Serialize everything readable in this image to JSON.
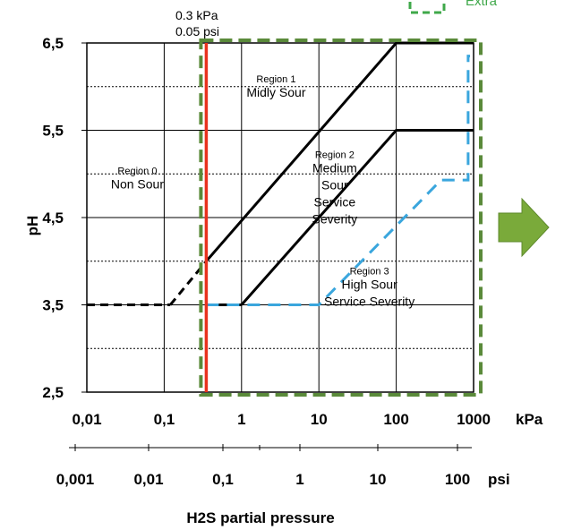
{
  "chart_data": {
    "type": "line",
    "xscale": "log",
    "xlim": [
      0.01,
      1000
    ],
    "ylim": [
      2.5,
      6.5
    ],
    "x_ticks": [
      "0,01",
      "0,1",
      "1",
      "10",
      "100",
      "1000"
    ],
    "x_unit": "kPa",
    "x2_ticks": [
      "0,001",
      "0,01",
      "0,1",
      "1",
      "10",
      "100"
    ],
    "x2_unit": "psi",
    "y_ticks": [
      "2,5",
      "3,5",
      "4,5",
      "5,5",
      "6,5"
    ],
    "ylabel": "pH",
    "xlabel": "H2S partial pressure",
    "grid": true,
    "threshold": {
      "line1": "0.3 kPa",
      "line2": "0.05 psi",
      "x": 0.35,
      "color": "#e8321e"
    },
    "region_labels": [
      {
        "num": "Region 1",
        "lines": [
          "Midly Sour"
        ],
        "x": 2.8,
        "y": 6.05
      },
      {
        "num": "Region 0",
        "lines": [
          "Non Sour"
        ],
        "x": 0.045,
        "y": 5.0
      },
      {
        "num": "Region 2",
        "lines": [
          "Medium",
          "Sour",
          "Service",
          "Severity"
        ],
        "x": 16,
        "y": 5.18
      },
      {
        "num": "Region 3",
        "lines": [
          "High Sour",
          "Service Severity"
        ],
        "x": 45,
        "y": 3.85
      }
    ],
    "series": [
      {
        "style": "solid",
        "color": "#000000",
        "x": [
          0.35,
          100,
          1000
        ],
        "y": [
          4.0,
          6.5,
          6.5
        ]
      },
      {
        "style": "solid",
        "color": "#000000",
        "x": [
          1,
          100,
          1000
        ],
        "y": [
          3.5,
          5.5,
          5.5
        ]
      },
      {
        "style": "solid",
        "color": "#000000",
        "x": [
          0.35,
          1
        ],
        "y": [
          3.5,
          3.5
        ]
      },
      {
        "style": "dashed",
        "color": "#000000",
        "x": [
          0.01,
          0.12
        ],
        "y": [
          3.5,
          3.5
        ]
      },
      {
        "style": "dashed",
        "color": "#000000",
        "x": [
          0.12,
          0.35
        ],
        "y": [
          3.5,
          4.0
        ]
      },
      {
        "style": "dashed",
        "color": "#3aa6dd",
        "x": [
          0.35,
          10,
          380,
          850,
          850,
          900
        ],
        "y": [
          3.5,
          3.5,
          4.93,
          4.93,
          6.35,
          6.35
        ]
      }
    ],
    "highlight_box": {
      "x_range": [
        0.35,
        1000
      ],
      "y_range": [
        2.5,
        6.5
      ],
      "color": "#5a8a3a"
    },
    "legend": {
      "label": "Extra",
      "color": "#3fa84a",
      "placement": "top-right"
    },
    "arrow": {
      "color": "#7aaa3a",
      "placement": "right"
    }
  }
}
